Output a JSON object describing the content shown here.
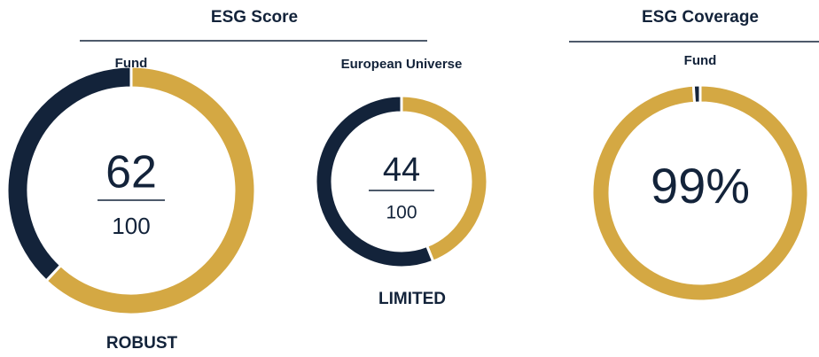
{
  "sections": [
    {
      "title": "ESG Score"
    },
    {
      "title": "ESG Coverage"
    }
  ],
  "chart_data": [
    {
      "type": "donut",
      "title": "Fund",
      "value": 62,
      "ylim": [
        0,
        100
      ],
      "label": "ROBUST",
      "colors": [
        "#d4a843",
        "#13233a"
      ]
    },
    {
      "type": "donut",
      "title": "European Universe",
      "value": 44,
      "ylim": [
        0,
        100
      ],
      "label": "LIMITED",
      "colors": [
        "#d4a843",
        "#13233a"
      ]
    },
    {
      "type": "donut",
      "title": "Fund",
      "value": 99,
      "value_label": "99%",
      "ylim": [
        0,
        100
      ],
      "colors": [
        "#d4a843",
        "#13233a"
      ]
    }
  ]
}
